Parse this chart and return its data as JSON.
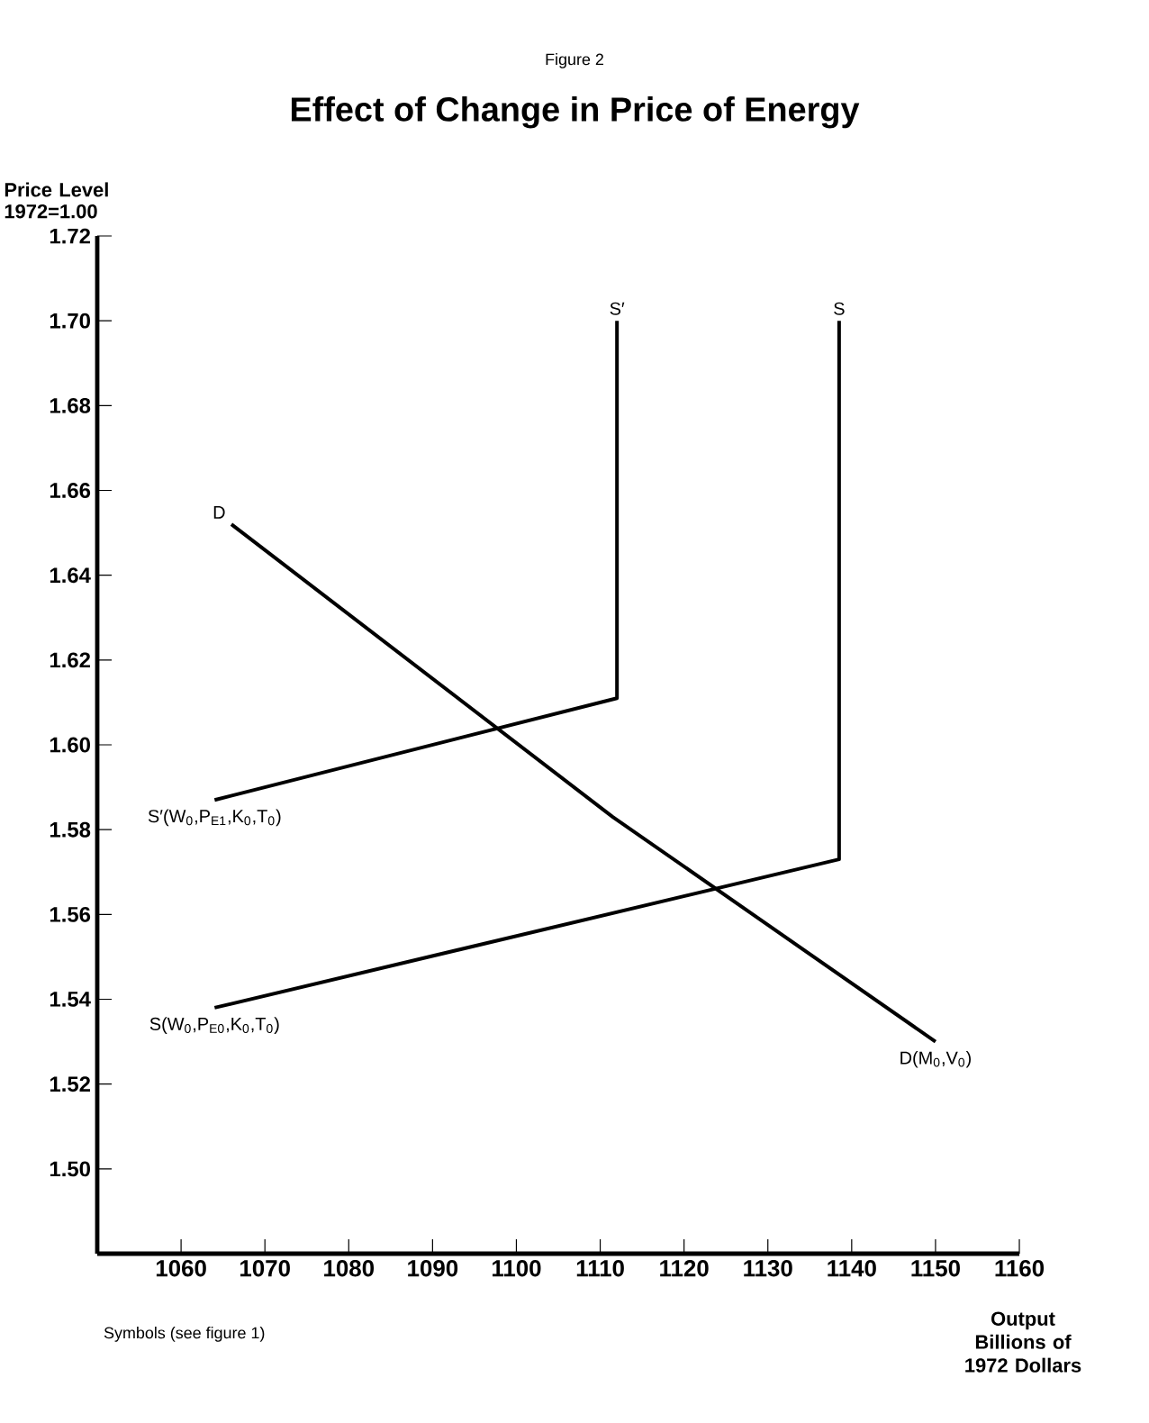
{
  "chart_data": {
    "type": "line",
    "title": "Effect of Change in Price of Energy",
    "xlabel": "Output Billions of 1972 Dollars",
    "ylabel": "Price Level 1972=1.00",
    "xlim": [
      1050,
      1160
    ],
    "xticks": [
      1060,
      1070,
      1080,
      1090,
      1100,
      1110,
      1120,
      1130,
      1140,
      1150,
      1160
    ],
    "ylim": [
      1.48,
      1.72
    ],
    "yticks": [
      {
        "value": 1.5,
        "label": "1.50"
      },
      1.52,
      1.54,
      1.56,
      1.58,
      {
        "value": 1.6,
        "label": "1.60"
      },
      1.62,
      1.64,
      1.66,
      1.68,
      {
        "value": 1.7,
        "label": "1.70"
      },
      1.72
    ],
    "grid": false,
    "marker": "none",
    "line_style": "solid",
    "series": [
      {
        "color": "#000000",
        "x": [
          1064,
          1112,
          1112
        ],
        "values": [
          1.587,
          1.611,
          1.7
        ]
      },
      {
        "color": "#000000",
        "x": [
          1064,
          1138.5,
          1138.5
        ],
        "values": [
          1.538,
          1.573,
          1.7
        ]
      },
      {
        "color": "#000000",
        "x": [
          1066,
          1111.5,
          1150
        ],
        "values": [
          1.652,
          1.583,
          1.53
        ]
      }
    ],
    "annotations": [
      "Figure 2",
      {
        "text": "S′",
        "x": 1112,
        "y": 1.7
      },
      {
        "text": "S",
        "x": 1138.5,
        "y": 1.7
      },
      {
        "text": "D",
        "x": 1066,
        "y": 1.652
      },
      "S′(W$_{0}$,P$_{E1}$,K$_{0}$,T$_{0}$)",
      "S(W$_{0}$,P$_{E0}$,K$_{0}$,T$_{0}$)",
      {
        "text": "D(M$_{0}$,V$_{0}$)",
        "x": 1150,
        "y": 1.53
      },
      "Symbols (see figure 1)"
    ]
  }
}
